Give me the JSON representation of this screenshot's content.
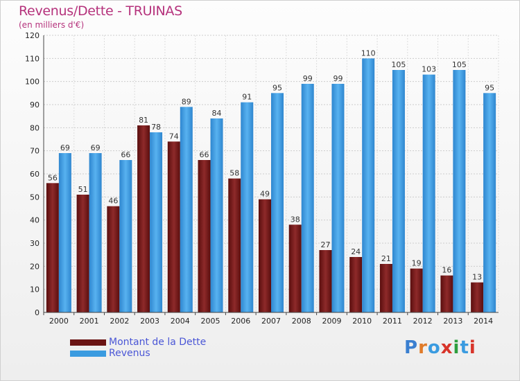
{
  "header": {
    "title": "Revenus/Dette - TRUINAS",
    "subtitle": "(en milliers d'€)"
  },
  "chart_data": {
    "type": "bar",
    "categories": [
      "2000",
      "2001",
      "2002",
      "2003",
      "2004",
      "2005",
      "2006",
      "2007",
      "2008",
      "2009",
      "2010",
      "2011",
      "2012",
      "2013",
      "2014"
    ],
    "series": [
      {
        "name": "Montant de la Dette",
        "color": "#7a1c1c",
        "values": [
          56,
          51,
          46,
          81,
          74,
          66,
          58,
          49,
          38,
          27,
          24,
          21,
          19,
          16,
          13
        ]
      },
      {
        "name": "Revenus",
        "color": "#3a9be0",
        "values": [
          69,
          69,
          66,
          78,
          89,
          84,
          91,
          95,
          99,
          99,
          110,
          105,
          103,
          105,
          95
        ]
      }
    ],
    "ylim": [
      0,
      120
    ],
    "yticks": [
      0,
      10,
      20,
      30,
      40,
      50,
      60,
      70,
      80,
      90,
      100,
      110,
      120
    ],
    "grid": true,
    "legend_position": "bottom-left"
  },
  "legend": {
    "items": [
      {
        "label": "Montant de la Dette",
        "color": "#6b1414"
      },
      {
        "label": "Revenus",
        "color": "#3a9be0"
      }
    ]
  },
  "logo": {
    "text": "Proxiti",
    "letter_colors": [
      "#3a7fd0",
      "#e07b2a",
      "#3a9be0",
      "#d8342a",
      "#2e9e3e",
      "#3a9be0",
      "#d8342a"
    ]
  }
}
